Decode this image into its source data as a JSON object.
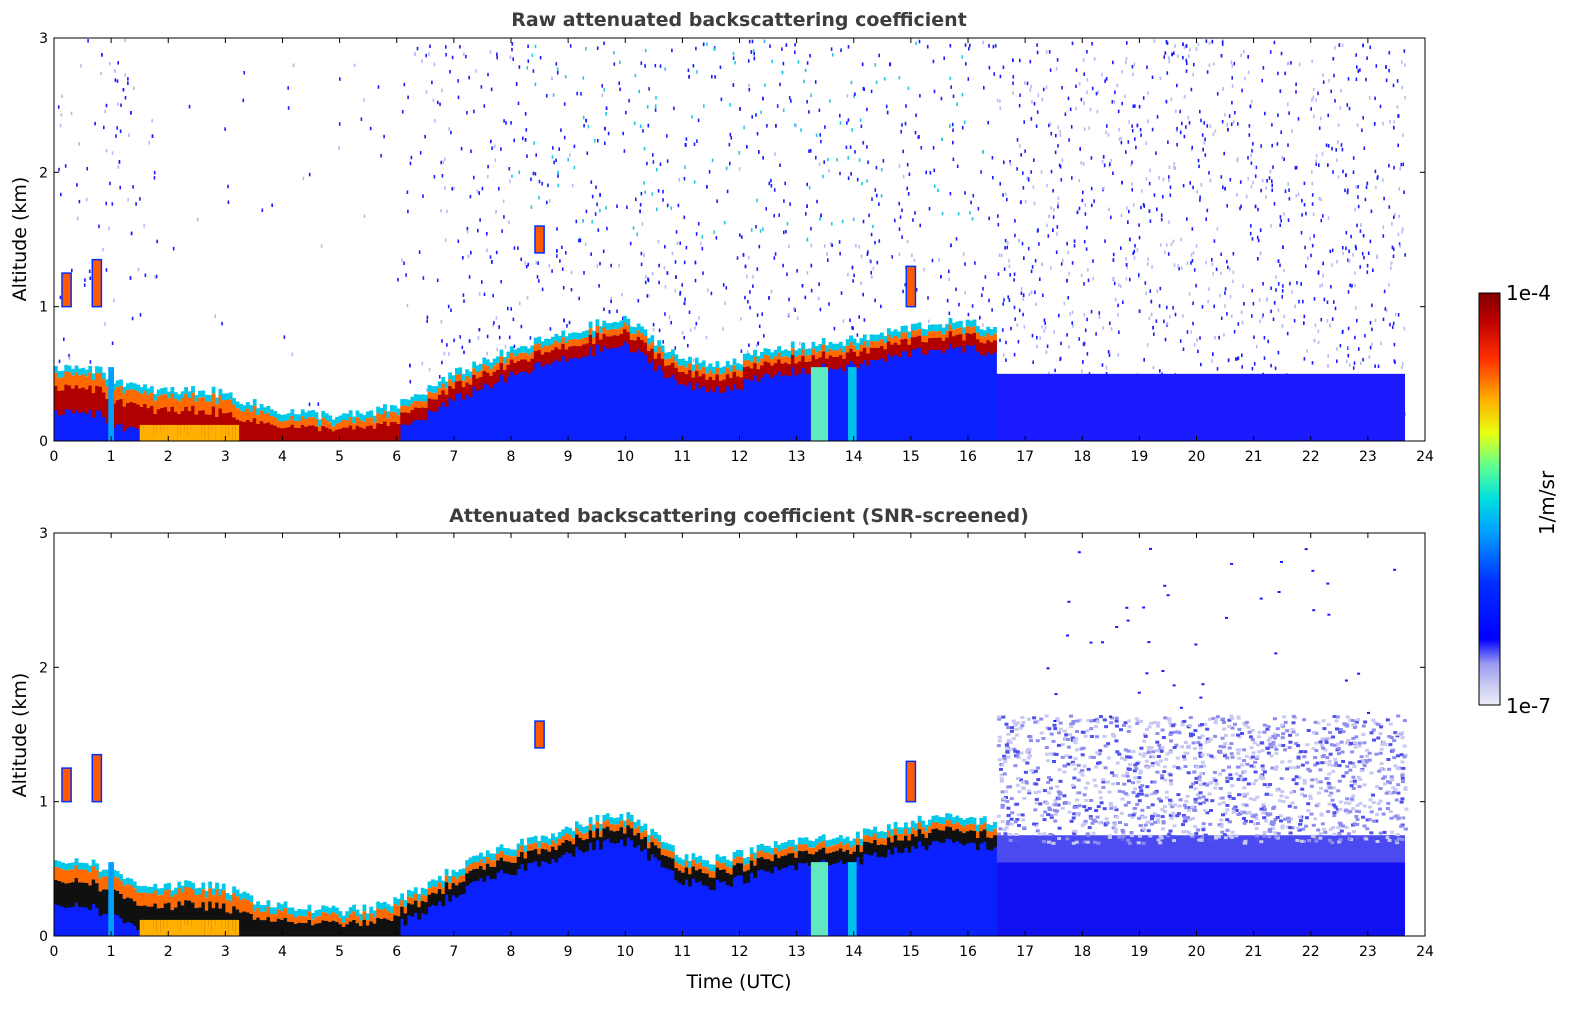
{
  "chart_data": [
    {
      "type": "heatmap",
      "title": "Raw attenuated backscattering coefficient",
      "xlabel": "",
      "ylabel": "Altitude (km)",
      "xlim": [
        0,
        24
      ],
      "ylim": [
        0,
        3
      ],
      "xticks": [
        "0",
        "1",
        "2",
        "3",
        "4",
        "5",
        "6",
        "7",
        "8",
        "9",
        "10",
        "11",
        "12",
        "13",
        "14",
        "15",
        "16",
        "17",
        "18",
        "19",
        "20",
        "21",
        "22",
        "23",
        "24"
      ],
      "yticks": [
        "0",
        "1",
        "2",
        "3"
      ],
      "data_end_time": 23.65,
      "boundary_layer_top_km": [
        {
          "t": 0.0,
          "z": 0.5
        },
        {
          "t": 0.5,
          "z": 0.52
        },
        {
          "t": 1.0,
          "z": 0.42
        },
        {
          "t": 1.5,
          "z": 0.34
        },
        {
          "t": 2.0,
          "z": 0.32
        },
        {
          "t": 2.5,
          "z": 0.33
        },
        {
          "t": 3.0,
          "z": 0.3
        },
        {
          "t": 3.5,
          "z": 0.22
        },
        {
          "t": 4.0,
          "z": 0.17
        },
        {
          "t": 4.5,
          "z": 0.15
        },
        {
          "t": 5.0,
          "z": 0.14
        },
        {
          "t": 5.5,
          "z": 0.15
        },
        {
          "t": 6.0,
          "z": 0.22
        },
        {
          "t": 6.5,
          "z": 0.33
        },
        {
          "t": 7.0,
          "z": 0.45
        },
        {
          "t": 7.5,
          "z": 0.55
        },
        {
          "t": 8.0,
          "z": 0.62
        },
        {
          "t": 8.5,
          "z": 0.7
        },
        {
          "t": 9.0,
          "z": 0.75
        },
        {
          "t": 9.5,
          "z": 0.82
        },
        {
          "t": 10.0,
          "z": 0.85
        },
        {
          "t": 10.5,
          "z": 0.7
        },
        {
          "t": 11.0,
          "z": 0.55
        },
        {
          "t": 11.5,
          "z": 0.52
        },
        {
          "t": 12.0,
          "z": 0.56
        },
        {
          "t": 12.5,
          "z": 0.62
        },
        {
          "t": 13.0,
          "z": 0.66
        },
        {
          "t": 13.5,
          "z": 0.68
        },
        {
          "t": 14.0,
          "z": 0.7
        },
        {
          "t": 14.5,
          "z": 0.75
        },
        {
          "t": 15.0,
          "z": 0.8
        },
        {
          "t": 15.5,
          "z": 0.83
        },
        {
          "t": 16.0,
          "z": 0.82
        },
        {
          "t": 16.5,
          "z": 0.8
        }
      ],
      "isolated_features": [
        {
          "t": 0.22,
          "z_lo": 1.0,
          "z_hi": 1.25
        },
        {
          "t": 0.75,
          "z_lo": 1.0,
          "z_hi": 1.35
        },
        {
          "t": 8.5,
          "z_lo": 1.4,
          "z_hi": 1.6
        },
        {
          "t": 15.0,
          "z_lo": 1.0,
          "z_hi": 1.3
        }
      ]
    },
    {
      "type": "heatmap",
      "title": "Attenuated backscattering coefficient (SNR-screened)",
      "xlabel": "Time (UTC)",
      "ylabel": "Altitude (km)",
      "xlim": [
        0,
        24
      ],
      "ylim": [
        0,
        3
      ],
      "xticks": [
        "0",
        "1",
        "2",
        "3",
        "4",
        "5",
        "6",
        "7",
        "8",
        "9",
        "10",
        "11",
        "12",
        "13",
        "14",
        "15",
        "16",
        "17",
        "18",
        "19",
        "20",
        "21",
        "22",
        "23",
        "24"
      ],
      "yticks": [
        "0",
        "1",
        "2",
        "3"
      ],
      "data_end_time": 23.65,
      "night_layer_top_km": 1.6
    }
  ],
  "colorbar": {
    "label": "1/m/sr",
    "max_label": "1e-4",
    "min_label": "1e-7",
    "colormap": [
      "#00008f",
      "#0000ff",
      "#0080ff",
      "#00ffff",
      "#80ff80",
      "#ffff00",
      "#ff8000",
      "#ff0000",
      "#800000"
    ],
    "low_colors": [
      "#e6e6f8",
      "#c8c8f2",
      "#a0a0f0",
      "#6c6cf0",
      "#0000ff"
    ]
  }
}
